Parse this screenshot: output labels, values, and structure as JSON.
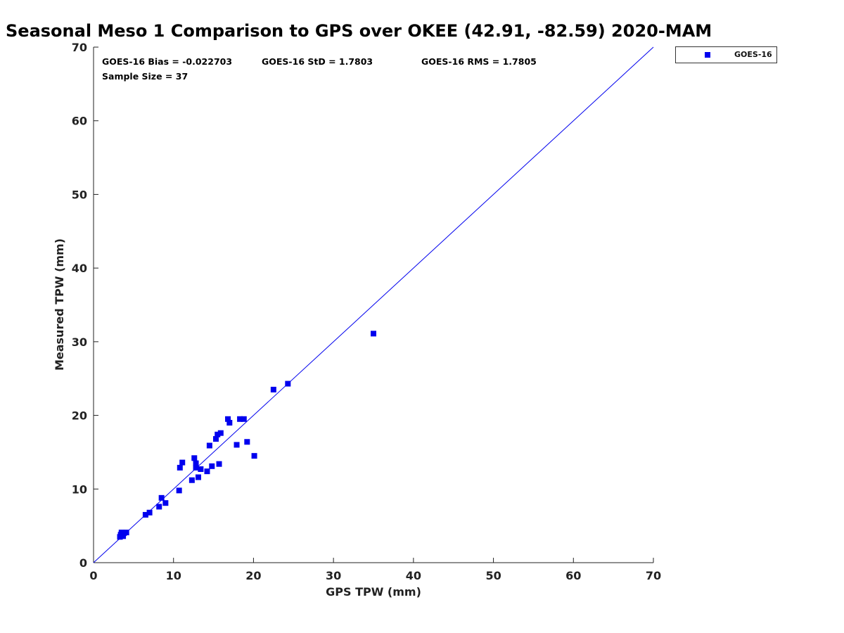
{
  "chart_data": {
    "type": "scatter",
    "title": "Seasonal Meso 1 Comparison to GPS over OKEE (42.91, -82.59) 2020-MAM",
    "xlabel": "GPS TPW (mm)",
    "ylabel": "Measured TPW (mm)",
    "xlim": [
      0,
      70
    ],
    "ylim": [
      0,
      70
    ],
    "xticks": [
      "0",
      "10",
      "20",
      "30",
      "40",
      "50",
      "60",
      "70"
    ],
    "yticks": [
      "0",
      "10",
      "20",
      "30",
      "40",
      "50",
      "60",
      "70"
    ],
    "grid": false,
    "legend_position": "top-right outside",
    "stats": {
      "bias": "GOES-16 Bias = -0.022703",
      "std": "GOES-16 StD = 1.7803",
      "rms": "GOES-16 RMS = 1.7805",
      "sample": "Sample Size = 37"
    },
    "reference_line": {
      "name": "1:1 line",
      "x": [
        0,
        70
      ],
      "y": [
        0,
        70
      ],
      "color": "#0000ee"
    },
    "series": [
      {
        "name": "GOES-16",
        "color": "#0000ee",
        "marker": "square",
        "points": [
          [
            3.4,
            3.8
          ],
          [
            3.5,
            4.1
          ],
          [
            3.7,
            3.6
          ],
          [
            3.8,
            4.0
          ],
          [
            4.1,
            4.1
          ],
          [
            3.3,
            3.5
          ],
          [
            6.5,
            6.5
          ],
          [
            7.0,
            6.8
          ],
          [
            8.2,
            7.6
          ],
          [
            8.5,
            8.8
          ],
          [
            9.0,
            8.1
          ],
          [
            10.7,
            9.8
          ],
          [
            10.8,
            12.9
          ],
          [
            11.1,
            13.6
          ],
          [
            12.3,
            11.2
          ],
          [
            12.6,
            14.2
          ],
          [
            12.8,
            13.5
          ],
          [
            12.8,
            12.9
          ],
          [
            13.1,
            11.6
          ],
          [
            13.4,
            12.7
          ],
          [
            14.2,
            12.4
          ],
          [
            14.5,
            15.9
          ],
          [
            14.8,
            13.1
          ],
          [
            15.3,
            16.8
          ],
          [
            15.5,
            17.4
          ],
          [
            15.7,
            13.4
          ],
          [
            15.9,
            17.6
          ],
          [
            16.8,
            19.5
          ],
          [
            17.0,
            19.0
          ],
          [
            17.9,
            16.0
          ],
          [
            18.3,
            19.5
          ],
          [
            18.8,
            19.5
          ],
          [
            19.2,
            16.4
          ],
          [
            20.1,
            14.5
          ],
          [
            22.5,
            23.5
          ],
          [
            24.3,
            24.3
          ],
          [
            35.0,
            31.1
          ]
        ]
      }
    ]
  }
}
